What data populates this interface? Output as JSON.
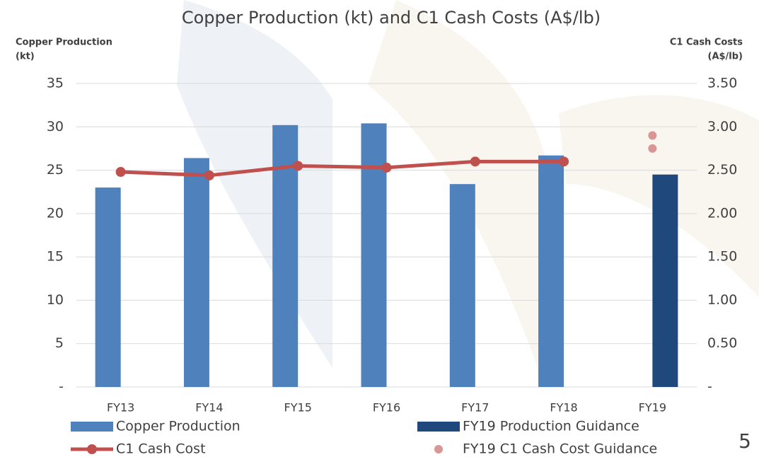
{
  "chart_data": {
    "type": "bar",
    "title": "Copper Production (kt) and C1 Cash Costs (A$/lb)",
    "ylabel": [
      "Copper Production",
      "(kt)"
    ],
    "y2label": [
      "C1 Cash Costs",
      "(A$/lb)"
    ],
    "categories": [
      "FY13",
      "FY14",
      "FY15",
      "FY16",
      "FY17",
      "FY18",
      "FY19"
    ],
    "series": [
      {
        "name": "Copper Production",
        "type": "bar",
        "color": "#4f81bd",
        "values": [
          23.0,
          26.4,
          30.2,
          30.4,
          23.4,
          26.7,
          null
        ]
      },
      {
        "name": "FY19 Production Guidance",
        "type": "bar",
        "color": "#1f497d",
        "values": [
          null,
          null,
          null,
          null,
          null,
          null,
          24.5
        ]
      },
      {
        "name": "C1 Cash Cost",
        "type": "line",
        "axis": "y2",
        "color": "#c0504d",
        "values": [
          2.48,
          2.44,
          2.55,
          2.53,
          2.6,
          2.6,
          null
        ]
      },
      {
        "name": "FY19 C1 Cash Cost Guidance",
        "type": "scatter",
        "axis": "y2",
        "color": "#d99694",
        "x": [
          "FY19",
          "FY19"
        ],
        "values": [
          2.9,
          2.75
        ]
      }
    ],
    "ylim": [
      0,
      35
    ],
    "yticks": [
      {
        "value": 0,
        "label": "-"
      },
      5,
      10,
      15,
      20,
      25,
      30,
      35
    ],
    "y2lim": [
      0,
      3.5
    ],
    "y2ticks": [
      {
        "value": 0,
        "label": "-"
      },
      {
        "value": 0.5,
        "label": "0.50"
      },
      {
        "value": 1,
        "label": "1.00"
      },
      {
        "value": 1.5,
        "label": "1.50"
      },
      {
        "value": 2,
        "label": "2.00"
      },
      {
        "value": 2.5,
        "label": "2.50"
      },
      {
        "value": 3,
        "label": "3.00"
      },
      {
        "value": 3.5,
        "label": "3.50"
      }
    ],
    "grid": true,
    "page_number": "5"
  }
}
